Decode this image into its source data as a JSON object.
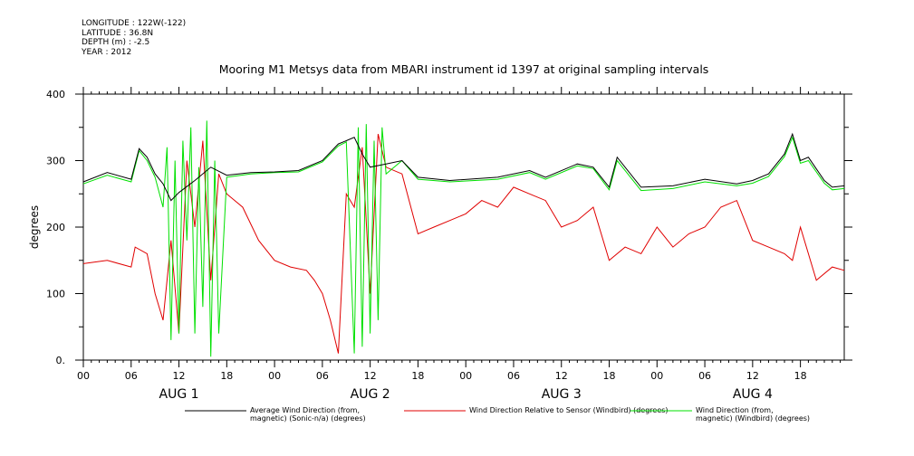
{
  "meta": {
    "longitude": "LONGITUDE : 122W(-122)",
    "latitude": "LATITUDE : 36.8N",
    "depth": "DEPTH (m) : -2.5",
    "year": "YEAR : 2012"
  },
  "colors": {
    "average": "#000000",
    "relative": "#e00000",
    "windbird": "#00e000"
  },
  "chart_data": {
    "type": "line",
    "title": "Mooring M1 Metsys data from MBARI instrument id 1397 at original sampling intervals",
    "ylabel": "degrees",
    "ylim": [
      0,
      400
    ],
    "yticks": [
      "0.",
      "100",
      "200",
      "300",
      "400"
    ],
    "xlim_hours": [
      0,
      95.5
    ],
    "xticks": [
      "00",
      "06",
      "12",
      "18",
      "00",
      "06",
      "12",
      "18",
      "00",
      "06",
      "12",
      "18",
      "00",
      "06",
      "12",
      "18"
    ],
    "day_labels": [
      "AUG 1",
      "AUG 2",
      "AUG 3",
      "AUG 4"
    ],
    "series": [
      {
        "key": "avg",
        "name": "Average Wind Direction (from, magnetic) (Sonic-n/a) (degrees)",
        "name_lines": [
          "Average Wind Direction (from,",
          "magnetic) (Sonic-n/a) (degrees)"
        ],
        "x": [
          0,
          3,
          6,
          7,
          8,
          9,
          10,
          11,
          12,
          14,
          16,
          18,
          21,
          24,
          27,
          30,
          32,
          33,
          34,
          35,
          36,
          38,
          40,
          42,
          46,
          52,
          56,
          58,
          62,
          64,
          66,
          67,
          70,
          74,
          78,
          82,
          84,
          86,
          88,
          89,
          90,
          91,
          93,
          94,
          95.5
        ],
        "y": [
          268,
          282,
          272,
          318,
          305,
          280,
          265,
          240,
          252,
          270,
          290,
          278,
          282,
          283,
          285,
          300,
          325,
          330,
          335,
          310,
          290,
          295,
          300,
          275,
          270,
          275,
          285,
          275,
          295,
          290,
          260,
          305,
          260,
          262,
          272,
          265,
          270,
          280,
          310,
          340,
          300,
          305,
          270,
          260,
          262
        ]
      },
      {
        "key": "rel",
        "name": "Wind Direction Relative to Sensor (Windbird) (degrees)",
        "name_lines": [
          "Wind Direction Relative to Sensor (Windbird) (degrees)"
        ],
        "x": [
          0,
          3,
          6,
          6.5,
          8,
          9,
          10,
          11,
          12,
          13,
          14,
          15,
          16,
          17,
          18,
          20,
          22,
          24,
          26,
          28,
          29,
          30,
          31,
          32,
          33,
          34,
          35,
          36,
          37,
          38,
          40,
          42,
          44,
          46,
          48,
          50,
          52,
          54,
          56,
          58,
          60,
          62,
          64,
          66,
          68,
          70,
          72,
          74,
          76,
          78,
          80,
          82,
          84,
          86,
          88,
          89,
          90,
          92,
          94,
          95.5
        ],
        "y": [
          145,
          150,
          140,
          170,
          160,
          100,
          60,
          180,
          40,
          300,
          200,
          330,
          120,
          280,
          250,
          230,
          180,
          150,
          140,
          135,
          120,
          100,
          60,
          10,
          250,
          230,
          320,
          100,
          340,
          290,
          280,
          190,
          200,
          210,
          220,
          240,
          230,
          260,
          250,
          240,
          200,
          210,
          230,
          150,
          170,
          160,
          200,
          170,
          190,
          200,
          230,
          240,
          180,
          170,
          160,
          150,
          200,
          120,
          140,
          135
        ]
      },
      {
        "key": "wb",
        "name": "Wind Direction (from, magnetic) (Windbird) (degrees)",
        "name_lines": [
          "Wind Direction (from,",
          "magnetic) (Windbird) (degrees)"
        ],
        "x": [
          0,
          3,
          6,
          7,
          8,
          9,
          10,
          10.5,
          11,
          11.5,
          12,
          12.5,
          13,
          13.5,
          14,
          14.5,
          15,
          15.5,
          16,
          16.5,
          17,
          18,
          21,
          24,
          27,
          30,
          32,
          33,
          34,
          34.5,
          35,
          35.5,
          36,
          36.5,
          37,
          37.5,
          38,
          40,
          42,
          46,
          52,
          56,
          58,
          62,
          64,
          66,
          67,
          70,
          74,
          78,
          82,
          84,
          86,
          88,
          89,
          90,
          91,
          93,
          94,
          95.5
        ],
        "y": [
          265,
          278,
          268,
          315,
          300,
          275,
          230,
          320,
          30,
          300,
          40,
          330,
          180,
          350,
          40,
          290,
          80,
          360,
          5,
          300,
          40,
          275,
          280,
          282,
          283,
          298,
          322,
          328,
          10,
          350,
          20,
          355,
          40,
          330,
          60,
          350,
          280,
          300,
          272,
          268,
          272,
          282,
          272,
          292,
          288,
          256,
          300,
          255,
          258,
          268,
          262,
          266,
          276,
          306,
          335,
          296,
          300,
          266,
          256,
          258
        ]
      }
    ]
  }
}
